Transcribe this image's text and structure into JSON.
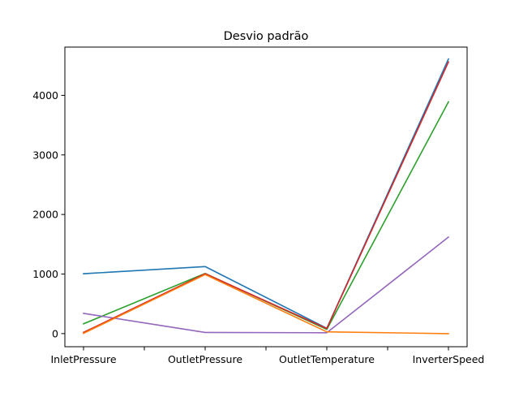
{
  "chart_data": {
    "type": "line",
    "title": "Desvio padrão",
    "xlabel": "",
    "ylabel": "",
    "categories": [
      "InletPressure",
      "OutletPressure",
      "OutletTemperature",
      "InverterSpeed"
    ],
    "ylim": [
      -220,
      4810
    ],
    "yticks": [
      0,
      1000,
      2000,
      3000,
      4000
    ],
    "grid": false,
    "legend": "none",
    "series": [
      {
        "color": "#1f77b4",
        "values": [
          1005,
          1125,
          90,
          4610
        ]
      },
      {
        "color": "#2ca02c",
        "values": [
          165,
          1010,
          70,
          3890
        ]
      },
      {
        "color": "#9467bd",
        "values": [
          340,
          20,
          15,
          1620
        ]
      },
      {
        "color": "#d62728",
        "values": [
          20,
          1005,
          85,
          4560
        ]
      },
      {
        "color": "#ff7f0e",
        "values": [
          5,
          990,
          30,
          0
        ]
      }
    ]
  }
}
